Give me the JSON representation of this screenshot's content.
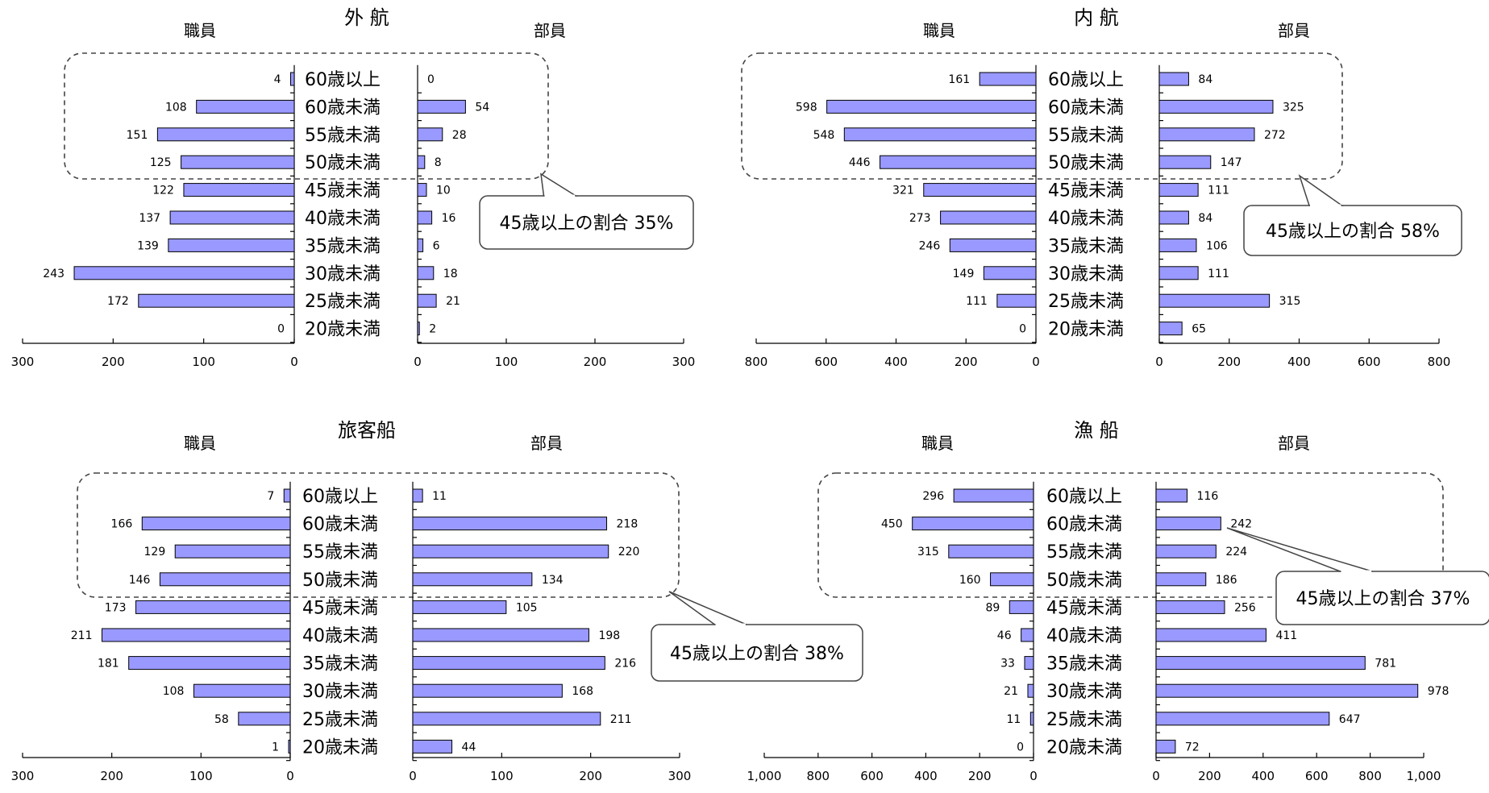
{
  "chart_data": [
    {
      "type": "bar",
      "title": "外 航",
      "left_label": "職員",
      "right_label": "部員",
      "categories": [
        "60歳以上",
        "60歳未満",
        "55歳未満",
        "50歳未満",
        "45歳未満",
        "40歳未満",
        "35歳未満",
        "30歳未満",
        "25歳未満",
        "20歳未満"
      ],
      "series": [
        {
          "name": "職員",
          "values": [
            4,
            108,
            151,
            125,
            122,
            137,
            139,
            243,
            172,
            0
          ]
        },
        {
          "name": "部員",
          "values": [
            0,
            54,
            28,
            8,
            10,
            16,
            6,
            18,
            21,
            2
          ]
        }
      ],
      "left_ticks": [
        "300",
        "200",
        "100",
        "0"
      ],
      "right_ticks": [
        "0",
        "100",
        "200",
        "300"
      ],
      "xlim": [
        0,
        300
      ],
      "callout": "45歳以上の割合 35%"
    },
    {
      "type": "bar",
      "title": "内 航",
      "left_label": "職員",
      "right_label": "部員",
      "categories": [
        "60歳以上",
        "60歳未満",
        "55歳未満",
        "50歳未満",
        "45歳未満",
        "40歳未満",
        "35歳未満",
        "30歳未満",
        "25歳未満",
        "20歳未満"
      ],
      "series": [
        {
          "name": "職員",
          "values": [
            161,
            598,
            548,
            446,
            321,
            273,
            246,
            149,
            111,
            0
          ]
        },
        {
          "name": "部員",
          "values": [
            84,
            325,
            272,
            147,
            111,
            84,
            106,
            111,
            315,
            65
          ]
        }
      ],
      "left_ticks": [
        "800",
        "600",
        "400",
        "200",
        "0"
      ],
      "right_ticks": [
        "0",
        "200",
        "400",
        "600",
        "800"
      ],
      "xlim": [
        0,
        800
      ],
      "callout": "45歳以上の割合 58%"
    },
    {
      "type": "bar",
      "title": "旅客船",
      "left_label": "職員",
      "right_label": "部員",
      "categories": [
        "60歳以上",
        "60歳未満",
        "55歳未満",
        "50歳未満",
        "45歳未満",
        "40歳未満",
        "35歳未満",
        "30歳未満",
        "25歳未満",
        "20歳未満"
      ],
      "series": [
        {
          "name": "職員",
          "values": [
            7,
            166,
            129,
            146,
            173,
            211,
            181,
            108,
            58,
            1
          ]
        },
        {
          "name": "部員",
          "values": [
            11,
            218,
            220,
            134,
            105,
            198,
            216,
            168,
            211,
            44
          ]
        }
      ],
      "left_ticks": [
        "300",
        "200",
        "100",
        "0"
      ],
      "right_ticks": [
        "0",
        "100",
        "200",
        "300"
      ],
      "xlim": [
        0,
        300
      ],
      "callout": "45歳以上の割合 38%"
    },
    {
      "type": "bar",
      "title": "漁 船",
      "left_label": "職員",
      "right_label": "部員",
      "categories": [
        "60歳以上",
        "60歳未満",
        "55歳未満",
        "50歳未満",
        "45歳未満",
        "40歳未満",
        "35歳未満",
        "30歳未満",
        "25歳未満",
        "20歳未満"
      ],
      "series": [
        {
          "name": "職員",
          "values": [
            296,
            450,
            315,
            160,
            89,
            46,
            33,
            21,
            11,
            0
          ]
        },
        {
          "name": "部員",
          "values": [
            116,
            242,
            224,
            186,
            256,
            411,
            781,
            978,
            647,
            72
          ]
        }
      ],
      "left_ticks": [
        "1,000",
        "800",
        "600",
        "400",
        "200",
        "0"
      ],
      "right_ticks": [
        "0",
        "200",
        "400",
        "600",
        "800",
        "1,000"
      ],
      "xlim": [
        0,
        1000
      ],
      "callout": "45歳以上の割合 37%"
    }
  ]
}
